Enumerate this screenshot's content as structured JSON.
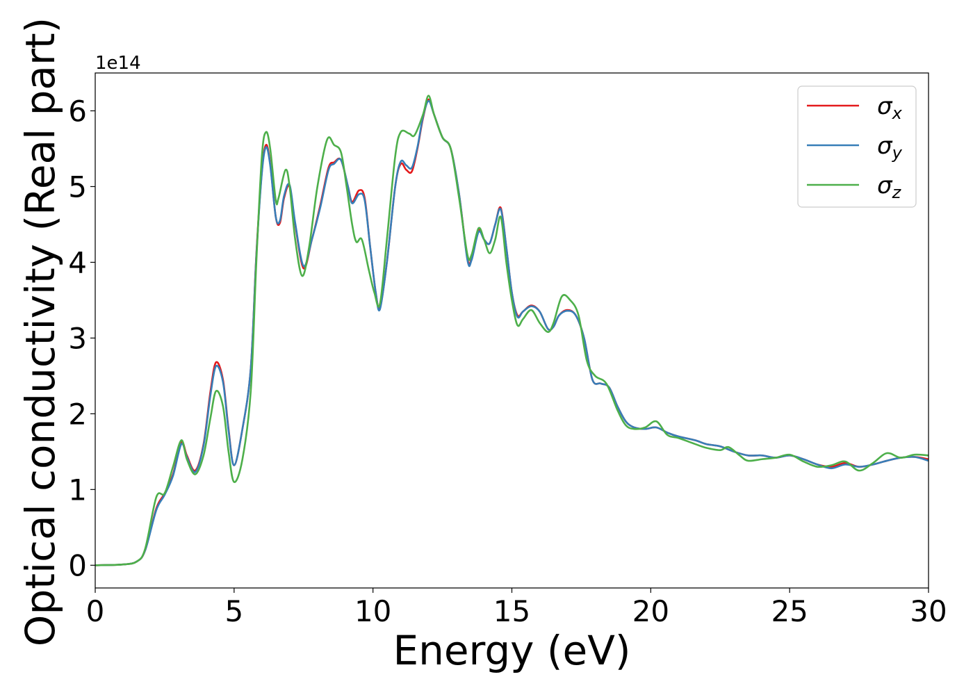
{
  "chart_data": {
    "type": "line",
    "xlabel": "Energy (eV)",
    "ylabel": "Optical conductivity (Real part)",
    "y_offset_label": "1e14",
    "y_scale_factor": 100000000000000.0,
    "xlim": [
      0,
      30
    ],
    "ylim": [
      -0.3,
      6.5
    ],
    "grid": false,
    "legend_position": "top-right",
    "x_ticks": [
      0,
      5,
      10,
      15,
      20,
      25,
      30
    ],
    "x_tick_labels": [
      "0",
      "5",
      "10",
      "15",
      "20",
      "25",
      "30"
    ],
    "y_ticks": [
      0,
      1,
      2,
      3,
      4,
      5,
      6
    ],
    "y_tick_labels": [
      "0",
      "1",
      "2",
      "3",
      "4",
      "5",
      "6"
    ],
    "series": [
      {
        "name": "σx",
        "legend_symbol": "σ",
        "legend_subscript": "x",
        "color": "#e41a1c",
        "points": [
          [
            0,
            0
          ],
          [
            1,
            0.01
          ],
          [
            1.5,
            0.05
          ],
          [
            1.8,
            0.2
          ],
          [
            2.2,
            0.75
          ],
          [
            2.5,
            0.95
          ],
          [
            2.8,
            1.2
          ],
          [
            3.1,
            1.62
          ],
          [
            3.3,
            1.45
          ],
          [
            3.6,
            1.25
          ],
          [
            3.9,
            1.6
          ],
          [
            4.15,
            2.3
          ],
          [
            4.35,
            2.68
          ],
          [
            4.6,
            2.45
          ],
          [
            4.8,
            1.8
          ],
          [
            5.0,
            1.32
          ],
          [
            5.3,
            1.8
          ],
          [
            5.6,
            2.6
          ],
          [
            5.8,
            4.1
          ],
          [
            6.0,
            5.2
          ],
          [
            6.15,
            5.55
          ],
          [
            6.3,
            5.3
          ],
          [
            6.5,
            4.6
          ],
          [
            6.65,
            4.52
          ],
          [
            6.8,
            4.85
          ],
          [
            7.0,
            5.0
          ],
          [
            7.2,
            4.5
          ],
          [
            7.5,
            3.92
          ],
          [
            7.8,
            4.3
          ],
          [
            8.1,
            4.75
          ],
          [
            8.4,
            5.25
          ],
          [
            8.6,
            5.32
          ],
          [
            8.85,
            5.35
          ],
          [
            9.1,
            5.0
          ],
          [
            9.25,
            4.8
          ],
          [
            9.5,
            4.95
          ],
          [
            9.7,
            4.85
          ],
          [
            9.9,
            4.2
          ],
          [
            10.1,
            3.6
          ],
          [
            10.25,
            3.4
          ],
          [
            10.5,
            4.0
          ],
          [
            10.8,
            5.0
          ],
          [
            11.0,
            5.3
          ],
          [
            11.2,
            5.22
          ],
          [
            11.4,
            5.2
          ],
          [
            11.6,
            5.5
          ],
          [
            11.8,
            5.9
          ],
          [
            12.0,
            6.15
          ],
          [
            12.2,
            5.95
          ],
          [
            12.5,
            5.65
          ],
          [
            12.8,
            5.5
          ],
          [
            13.1,
            4.9
          ],
          [
            13.4,
            4.05
          ],
          [
            13.55,
            4.05
          ],
          [
            13.8,
            4.42
          ],
          [
            14.0,
            4.3
          ],
          [
            14.2,
            4.25
          ],
          [
            14.4,
            4.5
          ],
          [
            14.6,
            4.72
          ],
          [
            14.8,
            4.2
          ],
          [
            15.0,
            3.6
          ],
          [
            15.2,
            3.3
          ],
          [
            15.4,
            3.35
          ],
          [
            15.7,
            3.43
          ],
          [
            16.0,
            3.35
          ],
          [
            16.3,
            3.12
          ],
          [
            16.5,
            3.15
          ],
          [
            16.7,
            3.3
          ],
          [
            17.0,
            3.37
          ],
          [
            17.3,
            3.3
          ],
          [
            17.6,
            3.0
          ],
          [
            17.9,
            2.45
          ],
          [
            18.2,
            2.4
          ],
          [
            18.5,
            2.35
          ],
          [
            18.8,
            2.1
          ],
          [
            19.1,
            1.9
          ],
          [
            19.4,
            1.82
          ],
          [
            19.8,
            1.8
          ],
          [
            20.2,
            1.82
          ],
          [
            20.6,
            1.75
          ],
          [
            21.0,
            1.7
          ],
          [
            21.6,
            1.65
          ],
          [
            22.0,
            1.6
          ],
          [
            22.5,
            1.57
          ],
          [
            23.0,
            1.5
          ],
          [
            23.5,
            1.45
          ],
          [
            24.0,
            1.45
          ],
          [
            24.5,
            1.42
          ],
          [
            25.0,
            1.45
          ],
          [
            25.5,
            1.4
          ],
          [
            26.0,
            1.33
          ],
          [
            26.5,
            1.3
          ],
          [
            27.0,
            1.35
          ],
          [
            27.5,
            1.3
          ],
          [
            28.0,
            1.33
          ],
          [
            28.5,
            1.38
          ],
          [
            29.0,
            1.42
          ],
          [
            29.5,
            1.43
          ],
          [
            30.0,
            1.4
          ]
        ]
      },
      {
        "name": "σy",
        "legend_symbol": "σ",
        "legend_subscript": "y",
        "color": "#377eb8",
        "points": [
          [
            0,
            0
          ],
          [
            1,
            0.01
          ],
          [
            1.5,
            0.05
          ],
          [
            1.8,
            0.2
          ],
          [
            2.2,
            0.73
          ],
          [
            2.5,
            0.93
          ],
          [
            2.8,
            1.18
          ],
          [
            3.1,
            1.6
          ],
          [
            3.3,
            1.43
          ],
          [
            3.6,
            1.23
          ],
          [
            3.9,
            1.58
          ],
          [
            4.15,
            2.25
          ],
          [
            4.35,
            2.63
          ],
          [
            4.6,
            2.42
          ],
          [
            4.8,
            1.78
          ],
          [
            5.0,
            1.32
          ],
          [
            5.3,
            1.8
          ],
          [
            5.6,
            2.6
          ],
          [
            5.8,
            4.08
          ],
          [
            6.0,
            5.18
          ],
          [
            6.15,
            5.52
          ],
          [
            6.3,
            5.28
          ],
          [
            6.5,
            4.6
          ],
          [
            6.65,
            4.55
          ],
          [
            6.8,
            4.88
          ],
          [
            7.0,
            5.02
          ],
          [
            7.2,
            4.52
          ],
          [
            7.5,
            3.95
          ],
          [
            7.8,
            4.3
          ],
          [
            8.1,
            4.72
          ],
          [
            8.4,
            5.22
          ],
          [
            8.6,
            5.3
          ],
          [
            8.85,
            5.35
          ],
          [
            9.1,
            5.0
          ],
          [
            9.25,
            4.78
          ],
          [
            9.5,
            4.9
          ],
          [
            9.7,
            4.82
          ],
          [
            9.9,
            4.2
          ],
          [
            10.1,
            3.6
          ],
          [
            10.25,
            3.38
          ],
          [
            10.5,
            4.0
          ],
          [
            10.8,
            5.0
          ],
          [
            11.0,
            5.33
          ],
          [
            11.2,
            5.28
          ],
          [
            11.4,
            5.25
          ],
          [
            11.6,
            5.52
          ],
          [
            11.8,
            5.92
          ],
          [
            12.0,
            6.13
          ],
          [
            12.2,
            5.95
          ],
          [
            12.5,
            5.65
          ],
          [
            12.8,
            5.5
          ],
          [
            13.1,
            4.9
          ],
          [
            13.4,
            4.03
          ],
          [
            13.55,
            4.03
          ],
          [
            13.8,
            4.4
          ],
          [
            14.0,
            4.3
          ],
          [
            14.2,
            4.25
          ],
          [
            14.4,
            4.5
          ],
          [
            14.6,
            4.7
          ],
          [
            14.8,
            4.2
          ],
          [
            15.0,
            3.6
          ],
          [
            15.2,
            3.28
          ],
          [
            15.4,
            3.35
          ],
          [
            15.7,
            3.42
          ],
          [
            16.0,
            3.35
          ],
          [
            16.3,
            3.12
          ],
          [
            16.5,
            3.15
          ],
          [
            16.7,
            3.3
          ],
          [
            17.0,
            3.36
          ],
          [
            17.3,
            3.3
          ],
          [
            17.6,
            3.0
          ],
          [
            17.9,
            2.45
          ],
          [
            18.2,
            2.4
          ],
          [
            18.5,
            2.35
          ],
          [
            18.8,
            2.1
          ],
          [
            19.1,
            1.9
          ],
          [
            19.4,
            1.82
          ],
          [
            19.8,
            1.8
          ],
          [
            20.2,
            1.82
          ],
          [
            20.6,
            1.75
          ],
          [
            21.0,
            1.7
          ],
          [
            21.6,
            1.65
          ],
          [
            22.0,
            1.6
          ],
          [
            22.5,
            1.57
          ],
          [
            23.0,
            1.5
          ],
          [
            23.5,
            1.45
          ],
          [
            24.0,
            1.45
          ],
          [
            24.5,
            1.42
          ],
          [
            25.0,
            1.45
          ],
          [
            25.5,
            1.4
          ],
          [
            26.0,
            1.33
          ],
          [
            26.5,
            1.28
          ],
          [
            27.0,
            1.33
          ],
          [
            27.5,
            1.3
          ],
          [
            28.0,
            1.33
          ],
          [
            28.5,
            1.38
          ],
          [
            29.0,
            1.42
          ],
          [
            29.5,
            1.43
          ],
          [
            30.0,
            1.38
          ]
        ]
      },
      {
        "name": "σz",
        "legend_symbol": "σ",
        "legend_subscript": "z",
        "color": "#4daf4a",
        "points": [
          [
            0,
            0
          ],
          [
            1,
            0.01
          ],
          [
            1.5,
            0.05
          ],
          [
            1.8,
            0.22
          ],
          [
            2.2,
            0.9
          ],
          [
            2.5,
            0.95
          ],
          [
            2.8,
            1.3
          ],
          [
            3.1,
            1.65
          ],
          [
            3.3,
            1.4
          ],
          [
            3.6,
            1.2
          ],
          [
            3.9,
            1.45
          ],
          [
            4.15,
            1.95
          ],
          [
            4.35,
            2.3
          ],
          [
            4.6,
            2.1
          ],
          [
            4.8,
            1.5
          ],
          [
            5.0,
            1.1
          ],
          [
            5.3,
            1.4
          ],
          [
            5.6,
            2.3
          ],
          [
            5.8,
            4.0
          ],
          [
            6.0,
            5.4
          ],
          [
            6.15,
            5.72
          ],
          [
            6.3,
            5.5
          ],
          [
            6.5,
            4.82
          ],
          [
            6.6,
            4.85
          ],
          [
            6.85,
            5.22
          ],
          [
            7.0,
            5.0
          ],
          [
            7.2,
            4.3
          ],
          [
            7.45,
            3.82
          ],
          [
            7.7,
            4.2
          ],
          [
            8.0,
            5.0
          ],
          [
            8.35,
            5.62
          ],
          [
            8.6,
            5.55
          ],
          [
            8.85,
            5.45
          ],
          [
            9.05,
            5.0
          ],
          [
            9.25,
            4.5
          ],
          [
            9.4,
            4.27
          ],
          [
            9.6,
            4.3
          ],
          [
            9.85,
            3.9
          ],
          [
            10.05,
            3.6
          ],
          [
            10.25,
            3.45
          ],
          [
            10.5,
            4.3
          ],
          [
            10.8,
            5.4
          ],
          [
            11.0,
            5.72
          ],
          [
            11.3,
            5.7
          ],
          [
            11.5,
            5.68
          ],
          [
            11.8,
            5.95
          ],
          [
            12.0,
            6.2
          ],
          [
            12.2,
            5.95
          ],
          [
            12.5,
            5.65
          ],
          [
            12.8,
            5.5
          ],
          [
            13.1,
            4.85
          ],
          [
            13.4,
            4.1
          ],
          [
            13.55,
            4.1
          ],
          [
            13.8,
            4.45
          ],
          [
            14.0,
            4.3
          ],
          [
            14.2,
            4.12
          ],
          [
            14.4,
            4.3
          ],
          [
            14.6,
            4.6
          ],
          [
            14.8,
            4.0
          ],
          [
            15.0,
            3.5
          ],
          [
            15.2,
            3.17
          ],
          [
            15.4,
            3.25
          ],
          [
            15.7,
            3.37
          ],
          [
            16.0,
            3.2
          ],
          [
            16.3,
            3.08
          ],
          [
            16.5,
            3.2
          ],
          [
            16.8,
            3.55
          ],
          [
            17.1,
            3.5
          ],
          [
            17.4,
            3.3
          ],
          [
            17.7,
            2.7
          ],
          [
            18.0,
            2.5
          ],
          [
            18.4,
            2.4
          ],
          [
            18.8,
            2.05
          ],
          [
            19.1,
            1.85
          ],
          [
            19.4,
            1.8
          ],
          [
            19.8,
            1.82
          ],
          [
            20.2,
            1.9
          ],
          [
            20.6,
            1.72
          ],
          [
            21.0,
            1.68
          ],
          [
            21.6,
            1.6
          ],
          [
            22.0,
            1.55
          ],
          [
            22.5,
            1.52
          ],
          [
            22.8,
            1.56
          ],
          [
            23.2,
            1.45
          ],
          [
            23.5,
            1.38
          ],
          [
            24.0,
            1.4
          ],
          [
            24.5,
            1.42
          ],
          [
            25.0,
            1.46
          ],
          [
            25.5,
            1.37
          ],
          [
            26.0,
            1.3
          ],
          [
            26.5,
            1.32
          ],
          [
            27.0,
            1.37
          ],
          [
            27.5,
            1.25
          ],
          [
            28.0,
            1.35
          ],
          [
            28.5,
            1.48
          ],
          [
            29.0,
            1.42
          ],
          [
            29.5,
            1.46
          ],
          [
            30.0,
            1.45
          ]
        ]
      }
    ]
  }
}
